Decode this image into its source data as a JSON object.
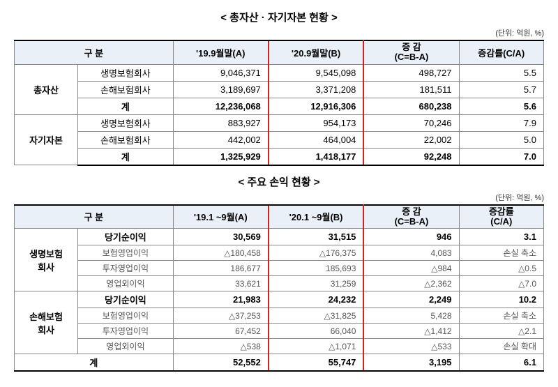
{
  "table1": {
    "title": "< 총자산 · 자기자본 현황 >",
    "unit": "(단위: 억원, %)",
    "headers": {
      "category": "구   분",
      "colA": "'19.9월말(A)",
      "colB": "'20.9월말(B)",
      "diff": "증 감\n(C=B-A)",
      "rate": "증감률(C/A)"
    },
    "groups": [
      {
        "label": "총자산",
        "rows": [
          {
            "label": "생명보험회사",
            "a": "9,046,371",
            "b": "9,545,098",
            "c": "498,727",
            "d": "5.5",
            "bold": false
          },
          {
            "label": "손해보험회사",
            "a": "3,189,697",
            "b": "3,371,208",
            "c": "181,511",
            "d": "5.7",
            "bold": false
          },
          {
            "label": "계",
            "a": "12,236,068",
            "b": "12,916,306",
            "c": "680,238",
            "d": "5.6",
            "bold": true
          }
        ]
      },
      {
        "label": "자기자본",
        "rows": [
          {
            "label": "생명보험회사",
            "a": "883,927",
            "b": "954,173",
            "c": "70,246",
            "d": "7.9",
            "bold": false
          },
          {
            "label": "손해보험회사",
            "a": "442,002",
            "b": "464,004",
            "c": "22,002",
            "d": "5.0",
            "bold": false
          },
          {
            "label": "계",
            "a": "1,325,929",
            "b": "1,418,177",
            "c": "92,248",
            "d": "7.0",
            "bold": true
          }
        ]
      }
    ]
  },
  "table2": {
    "title": "< 주요 손익 현황 >",
    "unit": "(단위: 억원, %)",
    "headers": {
      "category": "구   분",
      "colA": "'19.1 ~9월(A)",
      "colB": "'20.1 ~9월(B)",
      "diff": "증 감\n(C=B-A)",
      "rate": "증감률\n(C/A)"
    },
    "groups": [
      {
        "label": "생명보험\n회사",
        "rows": [
          {
            "label": "당기순이익",
            "a": "30,569",
            "b": "31,515",
            "c": "946",
            "d": "3.1",
            "bold": true,
            "sub": false
          },
          {
            "label": "보험영업이익",
            "a": "△180,458",
            "b": "△176,375",
            "c": "4,083",
            "d": "손실 축소",
            "bold": false,
            "sub": true
          },
          {
            "label": "투자영업이익",
            "a": "186,677",
            "b": "185,693",
            "c": "△984",
            "d": "△0.5",
            "bold": false,
            "sub": true
          },
          {
            "label": "영업외이익",
            "a": "33,621",
            "b": "31,259",
            "c": "△2,362",
            "d": "△7.0",
            "bold": false,
            "sub": true
          }
        ]
      },
      {
        "label": "손해보험\n회사",
        "rows": [
          {
            "label": "당기순이익",
            "a": "21,983",
            "b": "24,232",
            "c": "2,249",
            "d": "10.2",
            "bold": true,
            "sub": false
          },
          {
            "label": "보험영업이익",
            "a": "△37,253",
            "b": "△31,825",
            "c": "5,428",
            "d": "손실 축소",
            "bold": false,
            "sub": true
          },
          {
            "label": "투자영업이익",
            "a": "67,452",
            "b": "66,040",
            "c": "△1,412",
            "d": "△2.1",
            "bold": false,
            "sub": true
          },
          {
            "label": "영업외이익",
            "a": "△538",
            "b": "△1,071",
            "c": "△533",
            "d": "손실 확대",
            "bold": false,
            "sub": true
          }
        ]
      }
    ],
    "total": {
      "label": "계",
      "a": "52,552",
      "b": "55,747",
      "c": "3,195",
      "d": "6.1"
    }
  },
  "colors": {
    "header_bg": "#eaf0f7",
    "highlight_border": "#d02020",
    "border": "#888888"
  }
}
